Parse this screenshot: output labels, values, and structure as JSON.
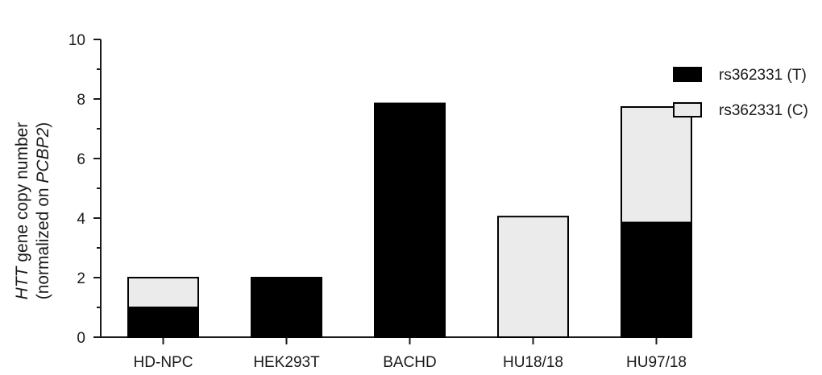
{
  "chart_data": {
    "type": "bar",
    "stacked": true,
    "title": "",
    "xlabel": "",
    "ylabel_line1_italic": "HTT",
    "ylabel_line1_rest": " gene copy number",
    "ylabel_line2_prefix": "(normalized on ",
    "ylabel_line2_italic": "PCBP2",
    "ylabel_line2_suffix": ")",
    "ylim": [
      0,
      10
    ],
    "yticks": [
      "0",
      "2",
      "4",
      "6",
      "8",
      "10"
    ],
    "grid": false,
    "legend_position": "top-right",
    "categories": [
      "HD-NPC",
      "HEK293T",
      "BACHD",
      "HU18/18",
      "HU97/18"
    ],
    "series": [
      {
        "name": "rs362331 (T)",
        "color": "#000000",
        "values": [
          1.0,
          2.0,
          7.85,
          0.0,
          3.85
        ]
      },
      {
        "name": "rs362331 (C)",
        "color": "#ebebeb",
        "values": [
          1.0,
          0.0,
          0.0,
          4.05,
          3.88
        ]
      }
    ]
  }
}
